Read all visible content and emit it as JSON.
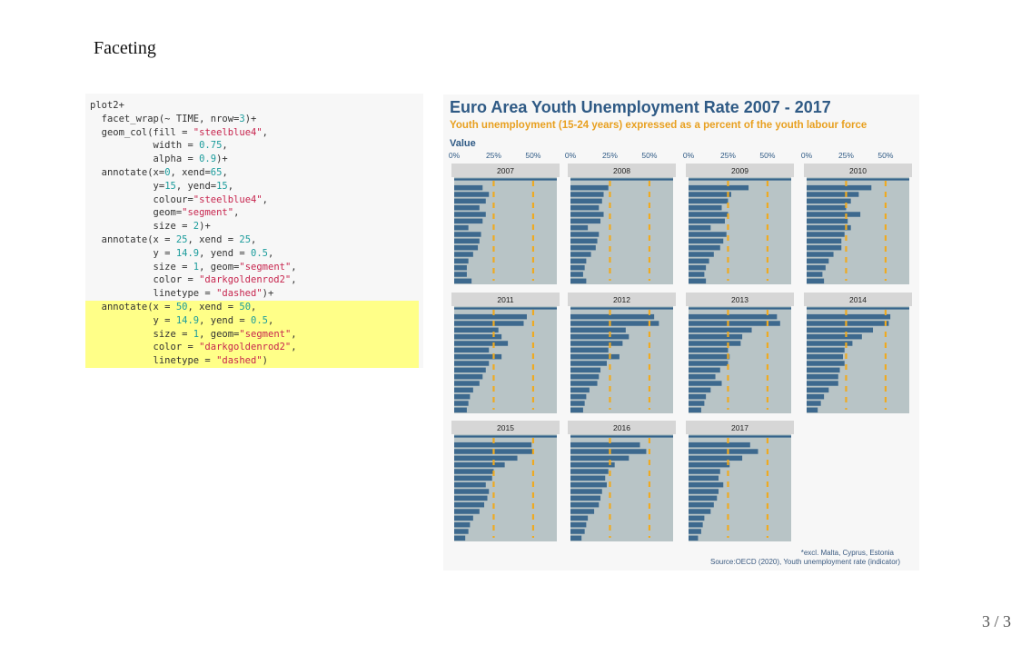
{
  "slide": {
    "title": "Faceting",
    "page_number": "3 / 3"
  },
  "code_lines": [
    {
      "highlight": false,
      "tokens": [
        {
          "t": "plot2+",
          "k": "txt"
        }
      ]
    },
    {
      "highlight": false,
      "tokens": [
        {
          "t": "  facet_wrap(~ TIME, nrow=",
          "k": "txt"
        },
        {
          "t": "3",
          "k": "num"
        },
        {
          "t": ")+",
          "k": "txt"
        }
      ]
    },
    {
      "highlight": false,
      "tokens": [
        {
          "t": "  geom_col(fill = ",
          "k": "txt"
        },
        {
          "t": "\"steelblue4\"",
          "k": "str"
        },
        {
          "t": ",",
          "k": "txt"
        }
      ]
    },
    {
      "highlight": false,
      "tokens": [
        {
          "t": "           width = ",
          "k": "txt"
        },
        {
          "t": "0.75",
          "k": "num"
        },
        {
          "t": ",",
          "k": "txt"
        }
      ]
    },
    {
      "highlight": false,
      "tokens": [
        {
          "t": "           alpha = ",
          "k": "txt"
        },
        {
          "t": "0.9",
          "k": "num"
        },
        {
          "t": ")+",
          "k": "txt"
        }
      ]
    },
    {
      "highlight": false,
      "tokens": [
        {
          "t": "  annotate(x=",
          "k": "txt"
        },
        {
          "t": "0",
          "k": "num"
        },
        {
          "t": ", xend=",
          "k": "txt"
        },
        {
          "t": "65",
          "k": "num"
        },
        {
          "t": ",",
          "k": "txt"
        }
      ]
    },
    {
      "highlight": false,
      "tokens": [
        {
          "t": "           y=",
          "k": "txt"
        },
        {
          "t": "15",
          "k": "num"
        },
        {
          "t": ", yend=",
          "k": "txt"
        },
        {
          "t": "15",
          "k": "num"
        },
        {
          "t": ",",
          "k": "txt"
        }
      ]
    },
    {
      "highlight": false,
      "tokens": [
        {
          "t": "           colour=",
          "k": "txt"
        },
        {
          "t": "\"steelblue4\"",
          "k": "str"
        },
        {
          "t": ",",
          "k": "txt"
        }
      ]
    },
    {
      "highlight": false,
      "tokens": [
        {
          "t": "           geom=",
          "k": "txt"
        },
        {
          "t": "\"segment\"",
          "k": "str"
        },
        {
          "t": ",",
          "k": "txt"
        }
      ]
    },
    {
      "highlight": false,
      "tokens": [
        {
          "t": "           size = ",
          "k": "txt"
        },
        {
          "t": "2",
          "k": "num"
        },
        {
          "t": ")+",
          "k": "txt"
        }
      ]
    },
    {
      "highlight": false,
      "tokens": [
        {
          "t": "  annotate(x = ",
          "k": "txt"
        },
        {
          "t": "25",
          "k": "num"
        },
        {
          "t": ", xend = ",
          "k": "txt"
        },
        {
          "t": "25",
          "k": "num"
        },
        {
          "t": ",",
          "k": "txt"
        }
      ]
    },
    {
      "highlight": false,
      "tokens": [
        {
          "t": "           y = ",
          "k": "txt"
        },
        {
          "t": "14.9",
          "k": "num"
        },
        {
          "t": ", yend = ",
          "k": "txt"
        },
        {
          "t": "0.5",
          "k": "num"
        },
        {
          "t": ",",
          "k": "txt"
        }
      ]
    },
    {
      "highlight": false,
      "tokens": [
        {
          "t": "           size = ",
          "k": "txt"
        },
        {
          "t": "1",
          "k": "num"
        },
        {
          "t": ", geom=",
          "k": "txt"
        },
        {
          "t": "\"segment\"",
          "k": "str"
        },
        {
          "t": ",",
          "k": "txt"
        }
      ]
    },
    {
      "highlight": false,
      "tokens": [
        {
          "t": "           color = ",
          "k": "txt"
        },
        {
          "t": "\"darkgoldenrod2\"",
          "k": "str"
        },
        {
          "t": ",",
          "k": "txt"
        }
      ]
    },
    {
      "highlight": false,
      "tokens": [
        {
          "t": "           linetype = ",
          "k": "txt"
        },
        {
          "t": "\"dashed\"",
          "k": "str"
        },
        {
          "t": ")+",
          "k": "txt"
        }
      ]
    },
    {
      "highlight": true,
      "tokens": [
        {
          "t": "  annotate(x = ",
          "k": "txt"
        },
        {
          "t": "50",
          "k": "num"
        },
        {
          "t": ", xend = ",
          "k": "txt"
        },
        {
          "t": "50",
          "k": "num"
        },
        {
          "t": ",",
          "k": "txt"
        }
      ]
    },
    {
      "highlight": true,
      "tokens": [
        {
          "t": "           y = ",
          "k": "txt"
        },
        {
          "t": "14.9",
          "k": "num"
        },
        {
          "t": ", yend = ",
          "k": "txt"
        },
        {
          "t": "0.5",
          "k": "num"
        },
        {
          "t": ",",
          "k": "txt"
        }
      ]
    },
    {
      "highlight": true,
      "tokens": [
        {
          "t": "           size = ",
          "k": "txt"
        },
        {
          "t": "1",
          "k": "num"
        },
        {
          "t": ", geom=",
          "k": "txt"
        },
        {
          "t": "\"segment\"",
          "k": "str"
        },
        {
          "t": ",",
          "k": "txt"
        }
      ]
    },
    {
      "highlight": true,
      "tokens": [
        {
          "t": "           color = ",
          "k": "txt"
        },
        {
          "t": "\"darkgoldenrod2\"",
          "k": "str"
        },
        {
          "t": ",",
          "k": "txt"
        }
      ]
    },
    {
      "highlight": true,
      "tokens": [
        {
          "t": "           linetype = ",
          "k": "txt"
        },
        {
          "t": "\"dashed\"",
          "k": "str"
        },
        {
          "t": ")",
          "k": "txt"
        }
      ]
    }
  ],
  "chart_data": {
    "type": "bar",
    "orientation": "horizontal",
    "title": "Euro Area Youth Unemployment Rate 2007 - 2017",
    "subtitle": "Youth unemployment (15-24 years) expressed as a percent of the youth labour force",
    "legend_title": "Value",
    "x_tick_labels": [
      "0%",
      "25%",
      "50%"
    ],
    "x_ticks": [
      0,
      25,
      50
    ],
    "xlim": [
      0,
      65
    ],
    "bars_per_panel": 15,
    "reference_lines": {
      "dashed_x": [
        25,
        50
      ],
      "top_segment_y": 15
    },
    "caption_lines": [
      "*excl. Malta, Cyprus, Estonia",
      "Source:OECD (2020), Youth unemployment rate (indicator)"
    ],
    "colors": {
      "bar": "#36648b",
      "dashed": "#eeaa22",
      "panel_bg": "#b8c4c6",
      "strip_bg": "#d6d6d6",
      "title": "#2f5a85",
      "subtitle": "#e8a020",
      "background": "#f7f7f7"
    },
    "facets": [
      {
        "label": "2007",
        "values": [
          18,
          22,
          20,
          16,
          20,
          18,
          9,
          17,
          16,
          15,
          12,
          9,
          8,
          8,
          11
        ]
      },
      {
        "label": "2008",
        "values": [
          24,
          21,
          20,
          18,
          21,
          19,
          11,
          18,
          17,
          16,
          13,
          10,
          9,
          8,
          10
        ]
      },
      {
        "label": "2009",
        "values": [
          38,
          27,
          25,
          21,
          25,
          23,
          14,
          24,
          22,
          20,
          16,
          13,
          11,
          10,
          11
        ]
      },
      {
        "label": "2010",
        "values": [
          41,
          33,
          28,
          25,
          34,
          26,
          28,
          24,
          22,
          22,
          17,
          14,
          12,
          10,
          11
        ]
      },
      {
        "label": "2011",
        "values": [
          46,
          44,
          28,
          30,
          34,
          22,
          30,
          22,
          20,
          18,
          16,
          12,
          10,
          9,
          8
        ]
      },
      {
        "label": "2012",
        "values": [
          53,
          56,
          35,
          37,
          33,
          24,
          31,
          23,
          19,
          18,
          17,
          12,
          10,
          9,
          8
        ]
      },
      {
        "label": "2013",
        "values": [
          56,
          58,
          40,
          34,
          33,
          25,
          26,
          25,
          20,
          17,
          21,
          14,
          11,
          10,
          8
        ]
      },
      {
        "label": "2014",
        "values": [
          53,
          52,
          42,
          35,
          29,
          24,
          23,
          24,
          21,
          20,
          20,
          14,
          11,
          9,
          7
        ]
      },
      {
        "label": "2015",
        "values": [
          49,
          50,
          40,
          32,
          25,
          24,
          20,
          22,
          21,
          19,
          16,
          12,
          10,
          9,
          7
        ]
      },
      {
        "label": "2016",
        "values": [
          44,
          48,
          37,
          28,
          24,
          22,
          23,
          20,
          19,
          18,
          15,
          11,
          10,
          9,
          7
        ]
      },
      {
        "label": "2017",
        "values": [
          39,
          44,
          34,
          26,
          20,
          19,
          22,
          19,
          18,
          16,
          14,
          10,
          9,
          8,
          6
        ]
      }
    ]
  }
}
